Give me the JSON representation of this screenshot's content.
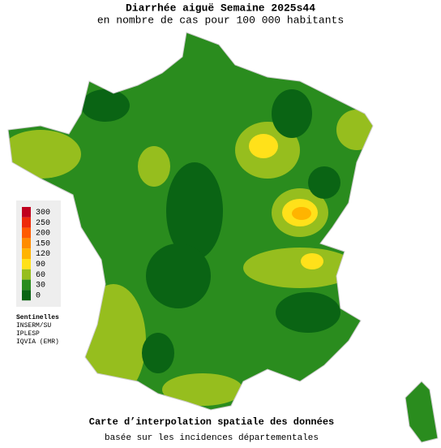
{
  "header": {
    "title": "Diarrhée aiguë Semaine 2025s44",
    "subtitle": "en nombre de cas pour 100 000 habitants"
  },
  "legend": {
    "items": [
      {
        "label": "300",
        "color": "#c0001e"
      },
      {
        "label": "250",
        "color": "#ee2a0a"
      },
      {
        "label": "200",
        "color": "#ff5a00"
      },
      {
        "label": "150",
        "color": "#ff8c00"
      },
      {
        "label": "120",
        "color": "#ffb400"
      },
      {
        "label": "90",
        "color": "#ffe11a"
      },
      {
        "label": "60",
        "color": "#96be1e"
      },
      {
        "label": "30",
        "color": "#2a8c1e"
      },
      {
        "label": "0",
        "color": "#0a6414"
      }
    ]
  },
  "sources": [
    "Sentinelles",
    "INSERM/SU",
    "IPLESP",
    "IQVIA (EMR)"
  ],
  "footer": {
    "title": "Carte d’interpolation spatiale des données",
    "subtitle": "basée sur les incidences départementales"
  }
}
